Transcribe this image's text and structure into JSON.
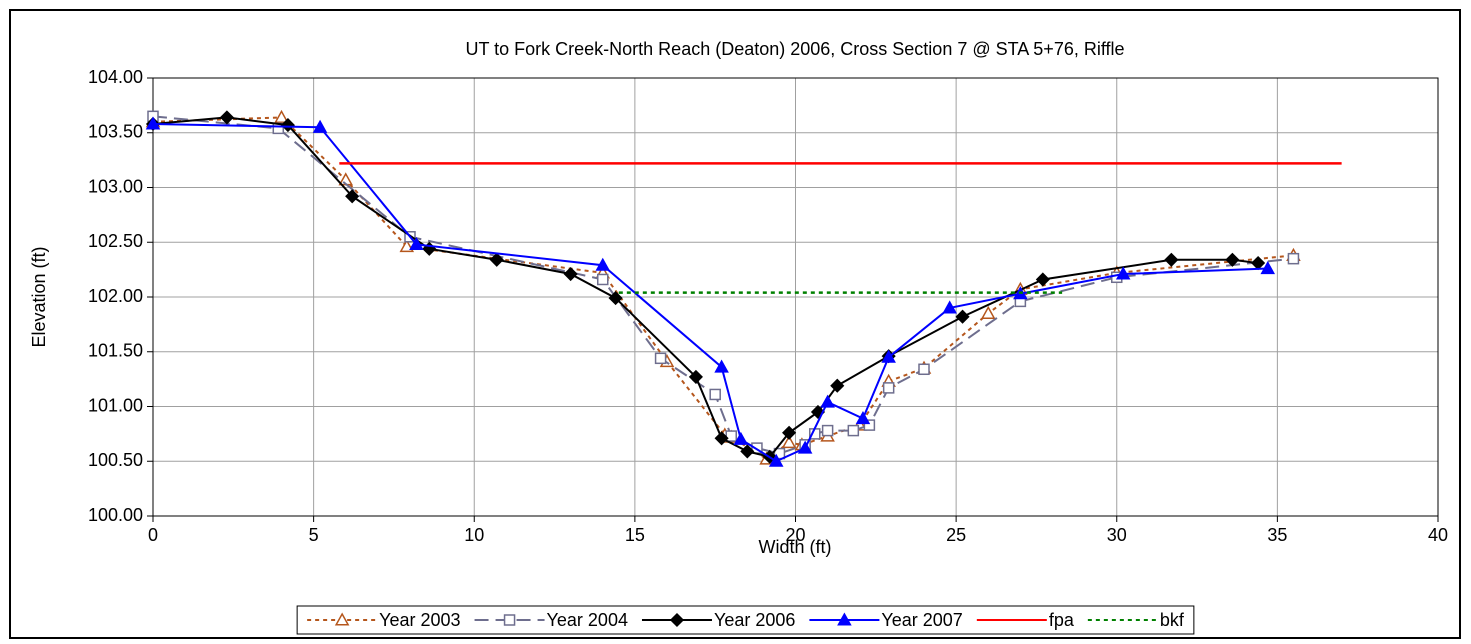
{
  "chart_data": {
    "type": "line",
    "title": "UT to Fork Creek-North Reach (Deaton) 2006, Cross Section 7 @ STA 5+76, Riffle",
    "xlabel": "Width (ft)",
    "ylabel": "Elevation (ft)",
    "xlim": [
      0,
      40
    ],
    "xticks": [
      0,
      5,
      10,
      15,
      20,
      25,
      30,
      35,
      40
    ],
    "ylim": [
      100,
      104
    ],
    "yticks": [
      {
        "value": 100,
        "label": "100.00"
      },
      {
        "value": 100.5,
        "label": "100.50"
      },
      {
        "value": 101,
        "label": "101.00"
      },
      {
        "value": 101.5,
        "label": "101.50"
      },
      {
        "value": 102,
        "label": "102.00"
      },
      {
        "value": 102.5,
        "label": "102.50"
      },
      {
        "value": 103,
        "label": "103.00"
      },
      {
        "value": 103.5,
        "label": "103.50"
      },
      {
        "value": 104,
        "label": "104.00"
      }
    ],
    "grid": true,
    "legend": "bottom",
    "series": [
      {
        "name": "Year 2003",
        "color": "#b5561c",
        "dash": "dotted",
        "marker": "triangle-open",
        "x": [
          0,
          4,
          6.0,
          7.9,
          14.0,
          16.0,
          17.8,
          18.0,
          19.1,
          19.8,
          20.2,
          21.0,
          22.0,
          22.9,
          24.0,
          26.0,
          27.0,
          30.0,
          35.5
        ],
        "values": [
          103.6,
          103.64,
          103.07,
          102.46,
          102.22,
          101.41,
          100.74,
          100.72,
          100.52,
          100.67,
          100.65,
          100.73,
          100.83,
          101.23,
          101.35,
          101.85,
          102.07,
          102.22,
          102.38
        ]
      },
      {
        "name": "Year 2004",
        "color": "#6e6e8e",
        "dash": "dashed",
        "marker": "square-open",
        "x": [
          0,
          3.9,
          8.0,
          14.0,
          15.8,
          17.5,
          18.0,
          18.8,
          19.5,
          20.3,
          20.6,
          21.0,
          21.8,
          22.3,
          22.9,
          24.0,
          27.0,
          30.0,
          35.5
        ],
        "values": [
          103.65,
          103.54,
          102.55,
          102.16,
          101.44,
          101.11,
          100.73,
          100.62,
          100.57,
          100.65,
          100.75,
          100.78,
          100.78,
          100.83,
          101.17,
          101.34,
          101.96,
          102.18,
          102.35
        ]
      },
      {
        "name": "Year 2006",
        "color": "#000000",
        "dash": "solid",
        "marker": "diamond",
        "x": [
          0,
          2.3,
          4.2,
          6.2,
          8.6,
          10.7,
          13.0,
          14.4,
          16.9,
          17.7,
          18.5,
          19.2,
          19.8,
          20.7,
          21.3,
          22.9,
          25.2,
          27.7,
          31.7,
          33.6,
          34.4
        ],
        "values": [
          103.58,
          103.64,
          103.57,
          102.92,
          102.44,
          102.34,
          102.21,
          101.99,
          101.27,
          100.71,
          100.59,
          100.54,
          100.76,
          100.95,
          101.19,
          101.46,
          101.82,
          102.16,
          102.34,
          102.34,
          102.31
        ]
      },
      {
        "name": "Year 2007",
        "color": "#0000ff",
        "dash": "solid",
        "marker": "triangle",
        "x": [
          0,
          5.2,
          8.2,
          14.0,
          17.7,
          18.3,
          19.4,
          20.3,
          21.0,
          22.1,
          22.9,
          24.8,
          27.0,
          30.2,
          34.7
        ],
        "values": [
          103.58,
          103.55,
          102.48,
          102.29,
          101.36,
          100.7,
          100.5,
          100.62,
          101.04,
          100.89,
          101.45,
          101.9,
          102.03,
          102.21,
          102.26
        ]
      },
      {
        "name": "fpa",
        "color": "#ff0000",
        "dash": "solid",
        "marker": "none",
        "x": [
          5.8,
          37
        ],
        "values": [
          103.22,
          103.22
        ]
      },
      {
        "name": "bkf",
        "color": "#008000",
        "dash": "dotted",
        "marker": "none",
        "x": [
          14.5,
          28.3
        ],
        "values": [
          102.04,
          102.04
        ]
      }
    ]
  }
}
